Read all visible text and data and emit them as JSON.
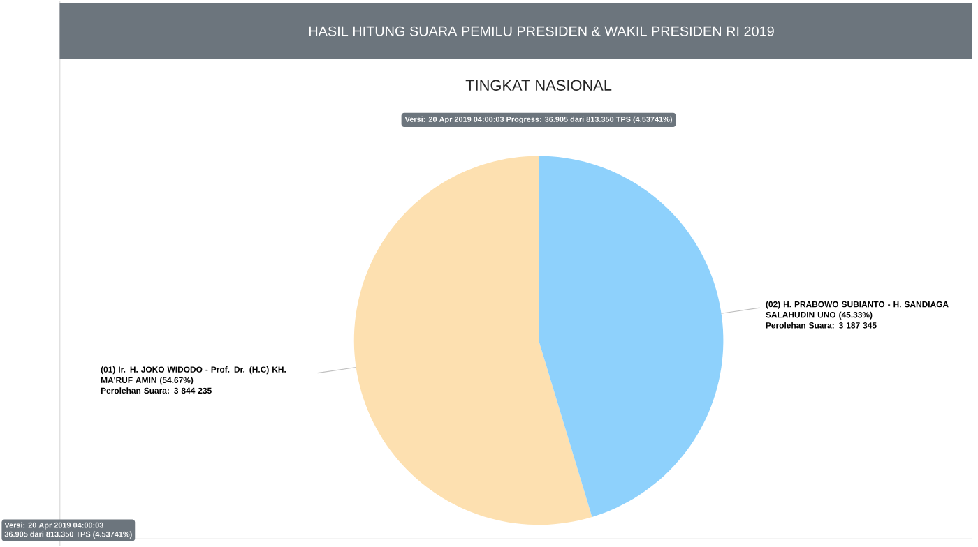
{
  "chart_data": {
    "type": "pie",
    "title": "HASIL HITUNG SUARA PEMILU PRESIDEN & WAKIL PRESIDEN RI 2019",
    "subtitle": "TINGKAT NASIONAL",
    "categories": [
      "(01) Ir. H. JOKO WIDODO - Prof. Dr. (H.C) KH. MA'RUF AMIN",
      "(02) H. PRABOWO SUBIANTO - H. SANDIAGA SALAHUDIN UNO"
    ],
    "values": [
      54.67,
      45.33
    ],
    "colors": [
      "#fde0b0",
      "#8ed1fc"
    ],
    "value_labels": [
      "(54.67%)",
      "(45.33%)"
    ],
    "annotations": [
      "Versi: 20 Apr 2019 04:00:03 Progress: 36.905 dari 813.350 TPS (4.53741%)",
      "Perolehan Suara: 3 844 235",
      "Perolehan Suara: 3 187 345",
      "Versi: 20 Apr 2019 04:00:03",
      "36.905 dari 813.350 TPS (4.53741%)"
    ]
  }
}
